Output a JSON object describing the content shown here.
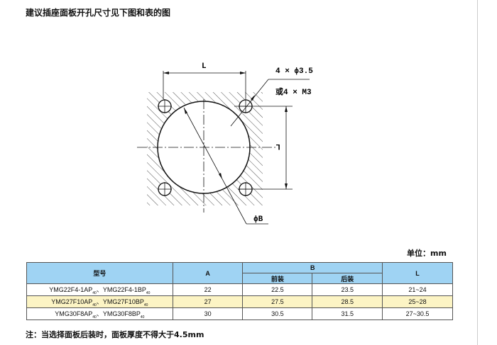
{
  "title": "建议插座面板开孔尺寸见下图和表的图",
  "drawing": {
    "dim_L_top": "L",
    "dim_L_right": "L",
    "hole_label": "4 × ϕ3.5",
    "hole_alt_label": "或4 × M3",
    "diameter_label": "ϕB"
  },
  "unit": "单位：mm",
  "table": {
    "headers": {
      "model": "型号",
      "a": "A",
      "b": "B",
      "b_front": "前装",
      "b_rear": "后装",
      "l": "L"
    },
    "rows": [
      {
        "model1": "YMG22F4-1AP",
        "model2": "YMG22F4-1BP",
        "sub": "40",
        "sep": "、",
        "a": "22",
        "b_front": "22.5",
        "b_rear": "23.5",
        "l": "21~24"
      },
      {
        "model1": "YMG27F10AP",
        "model2": "YMG27F10BP",
        "sub": "40",
        "sep": "、",
        "a": "27",
        "b_front": "27.5",
        "b_rear": "28.5",
        "l": "25~28"
      },
      {
        "model1": "YMG30F8AP",
        "model2": "YMG30F8BP",
        "sub": "40",
        "sep": "、",
        "a": "30",
        "b_front": "30.5",
        "b_rear": "31.5",
        "l": "27~30.5"
      }
    ]
  },
  "note": "注：当选择面板后装时，面板厚度不得大于4.5mm",
  "colors": {
    "header_bg": "#9fd3f3",
    "highlight_row": "#fcf4c4"
  }
}
